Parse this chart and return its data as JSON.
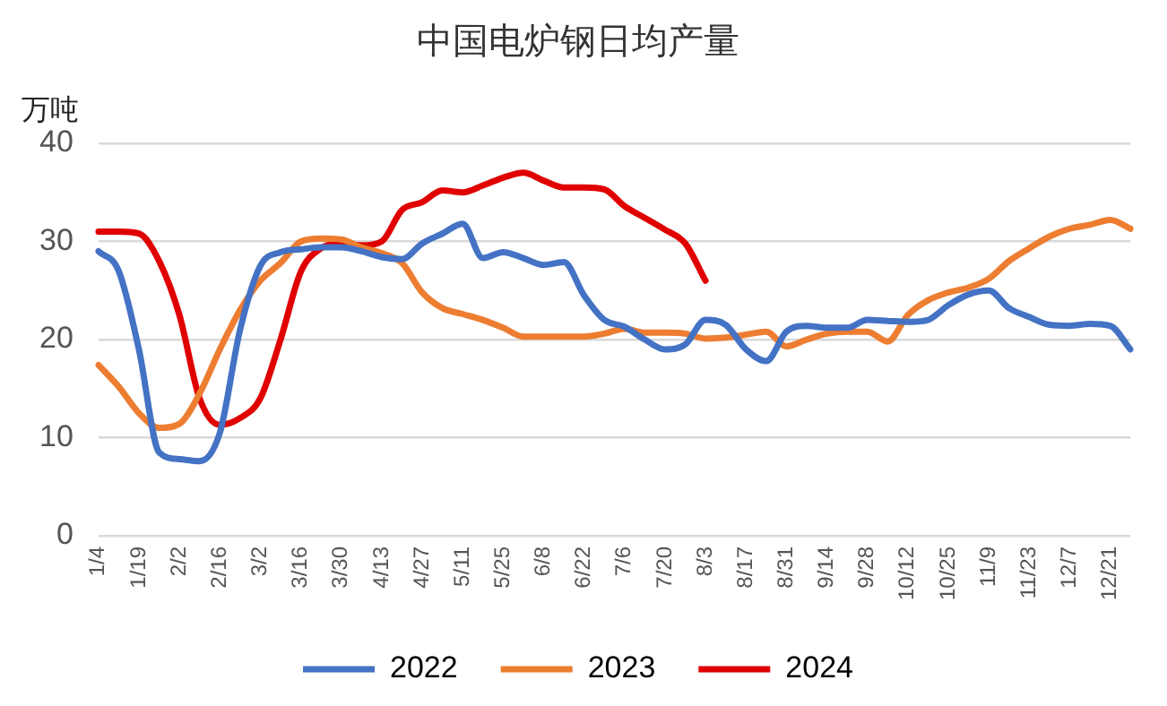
{
  "chart_data": {
    "type": "line",
    "title": "中国电炉钢日均产量",
    "ylabel": "万吨",
    "categories": [
      "1/4",
      null,
      "1/19",
      null,
      "2/2",
      null,
      "2/16",
      null,
      "3/2",
      null,
      "3/16",
      null,
      "3/30",
      null,
      "4/13",
      null,
      "4/27",
      null,
      "5/11",
      null,
      "5/25",
      null,
      "6/8",
      null,
      "6/22",
      null,
      "7/6",
      null,
      "7/20",
      null,
      "8/3",
      null,
      "8/17",
      null,
      "8/31",
      null,
      "9/14",
      null,
      "9/28",
      null,
      "10/12",
      null,
      "10/25",
      null,
      "11/9",
      null,
      "11/23",
      null,
      "12/7",
      null,
      "12/21",
      null
    ],
    "series": [
      {
        "name": "2022",
        "color": "#4472c4",
        "values": [
          29,
          27,
          19,
          8.5,
          7.8,
          7.6,
          10.5,
          21,
          27.5,
          28.9,
          29.2,
          29.4,
          29.4,
          29,
          28.4,
          28.2,
          29.8,
          30.8,
          31.8,
          28.3,
          28.9,
          28.3,
          27.6,
          27.9,
          24.5,
          22,
          21.3,
          20,
          19,
          19.5,
          22,
          21.5,
          19,
          17.8,
          20.8,
          21.4,
          21.2,
          21.2,
          22,
          21.9,
          21.8,
          22,
          23.5,
          24.6,
          25,
          23.2,
          22.3,
          21.5,
          21.4,
          21.6,
          21.4,
          19
        ]
      },
      {
        "name": "2023",
        "color": "#ed7d31",
        "values": [
          17.4,
          15.2,
          12.5,
          11,
          11.4,
          14.5,
          19,
          23,
          26,
          27.8,
          30,
          30.3,
          30.2,
          29.4,
          28.8,
          27.8,
          24.8,
          23.2,
          22.6,
          22,
          21.2,
          20.3,
          20.3,
          20.3,
          20.3,
          20.6,
          21.1,
          20.7,
          20.7,
          20.6,
          20.1,
          20.2,
          20.5,
          20.8,
          19.3,
          20,
          20.6,
          20.8,
          20.8,
          19.8,
          22.5,
          24,
          24.8,
          25.3,
          26.2,
          28,
          29.3,
          30.5,
          31.3,
          31.7,
          32.2,
          31.3
        ]
      },
      {
        "name": "2024",
        "color": "#e00000",
        "values": [
          31,
          31,
          30.8,
          28,
          22.5,
          14,
          11.3,
          12,
          14,
          20,
          26.9,
          29.3,
          29.8,
          29.6,
          30,
          33.2,
          34,
          35.2,
          35,
          35.7,
          36.5,
          37,
          36.2,
          35.5,
          35.5,
          35.3,
          33.6,
          32.4,
          31.2,
          29.8,
          26,
          null,
          null,
          null,
          null,
          null,
          null,
          null,
          null,
          null,
          null,
          null,
          null,
          null,
          null,
          null,
          null,
          null,
          null,
          null,
          null,
          null
        ]
      }
    ],
    "ylim": [
      0,
      40
    ],
    "yticks": [
      0,
      10,
      20,
      30,
      40
    ],
    "grid": "y",
    "legend": "bottom",
    "marker": "none",
    "line_style": "solid"
  }
}
